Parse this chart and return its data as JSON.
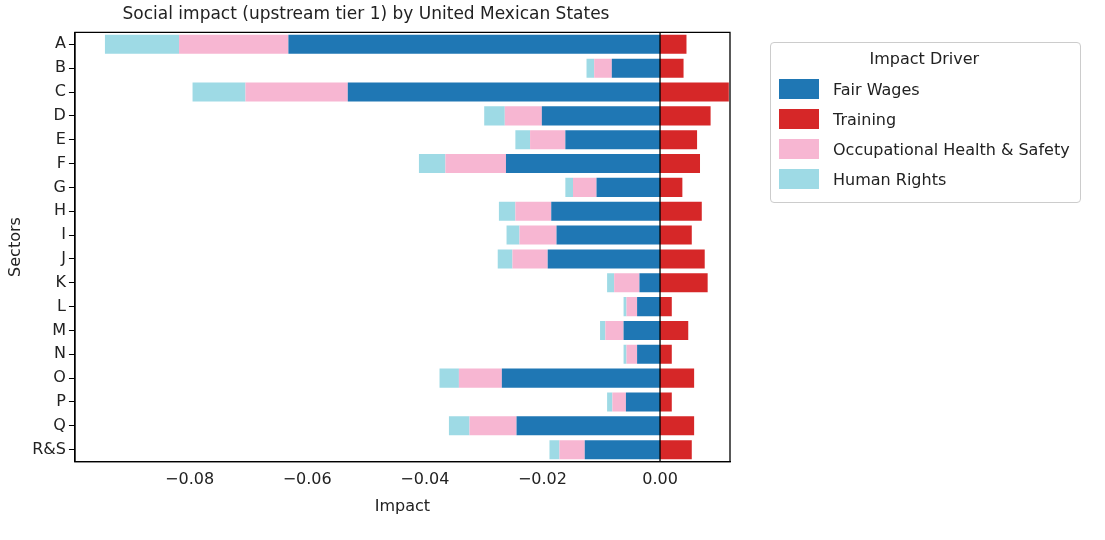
{
  "chart_data": {
    "type": "bar",
    "orientation": "horizontal",
    "stacked": true,
    "title": "Social impact (upstream tier 1) by United Mexican States",
    "xlabel": "Impact",
    "ylabel": "Sectors",
    "legend_title": "Impact Driver",
    "legend": "top right",
    "grid": false,
    "categories": [
      "A",
      "B",
      "C",
      "D",
      "E",
      "F",
      "G",
      "H",
      "I",
      "J",
      "K",
      "L",
      "M",
      "N",
      "O",
      "P",
      "Q",
      "R&S"
    ],
    "xlim": [
      -0.0995,
      0.0119
    ],
    "xticks": [
      {
        "value": -0.08,
        "label": "−0.08"
      },
      {
        "value": -0.06,
        "label": "−0.06"
      },
      {
        "value": -0.04,
        "label": "−0.04"
      },
      {
        "value": -0.02,
        "label": "−0.02"
      },
      {
        "value": 0,
        "label": "0.00"
      }
    ],
    "ref_lines": [
      {
        "axis": "x",
        "value": 0,
        "color": "#000000"
      }
    ],
    "series": [
      {
        "name": "Fair Wages",
        "color": "#1f77b4",
        "values": [
          -0.0632,
          -0.0082,
          -0.0531,
          -0.0201,
          -0.0161,
          -0.0262,
          -0.0108,
          -0.0185,
          -0.0176,
          -0.0191,
          -0.0035,
          -0.0039,
          -0.0062,
          -0.0039,
          -0.0269,
          -0.0058,
          -0.0244,
          -0.0128
        ]
      },
      {
        "name": "Training",
        "color": "#d62728",
        "values": [
          0.0045,
          0.004,
          0.0117,
          0.0086,
          0.0063,
          0.0068,
          0.0038,
          0.0071,
          0.0054,
          0.0076,
          0.0081,
          0.002,
          0.0048,
          0.002,
          0.0058,
          0.002,
          0.0058,
          0.0054
        ]
      },
      {
        "name": "Occupational Health & Safety",
        "color": "#f7b6d2",
        "values": [
          -0.0186,
          -0.003,
          -0.0174,
          -0.0063,
          -0.006,
          -0.0103,
          -0.004,
          -0.0061,
          -0.0063,
          -0.006,
          -0.0043,
          -0.0018,
          -0.0031,
          -0.0018,
          -0.0073,
          -0.0023,
          -0.008,
          -0.0043
        ]
      },
      {
        "name": "Human Rights",
        "color": "#9edae5",
        "values": [
          -0.0126,
          -0.0013,
          -0.009,
          -0.0035,
          -0.0025,
          -0.0045,
          -0.0013,
          -0.0028,
          -0.0022,
          -0.0025,
          -0.0012,
          -0.0005,
          -0.0009,
          -0.0005,
          -0.0033,
          -0.0009,
          -0.0035,
          -0.0017
        ]
      }
    ]
  }
}
